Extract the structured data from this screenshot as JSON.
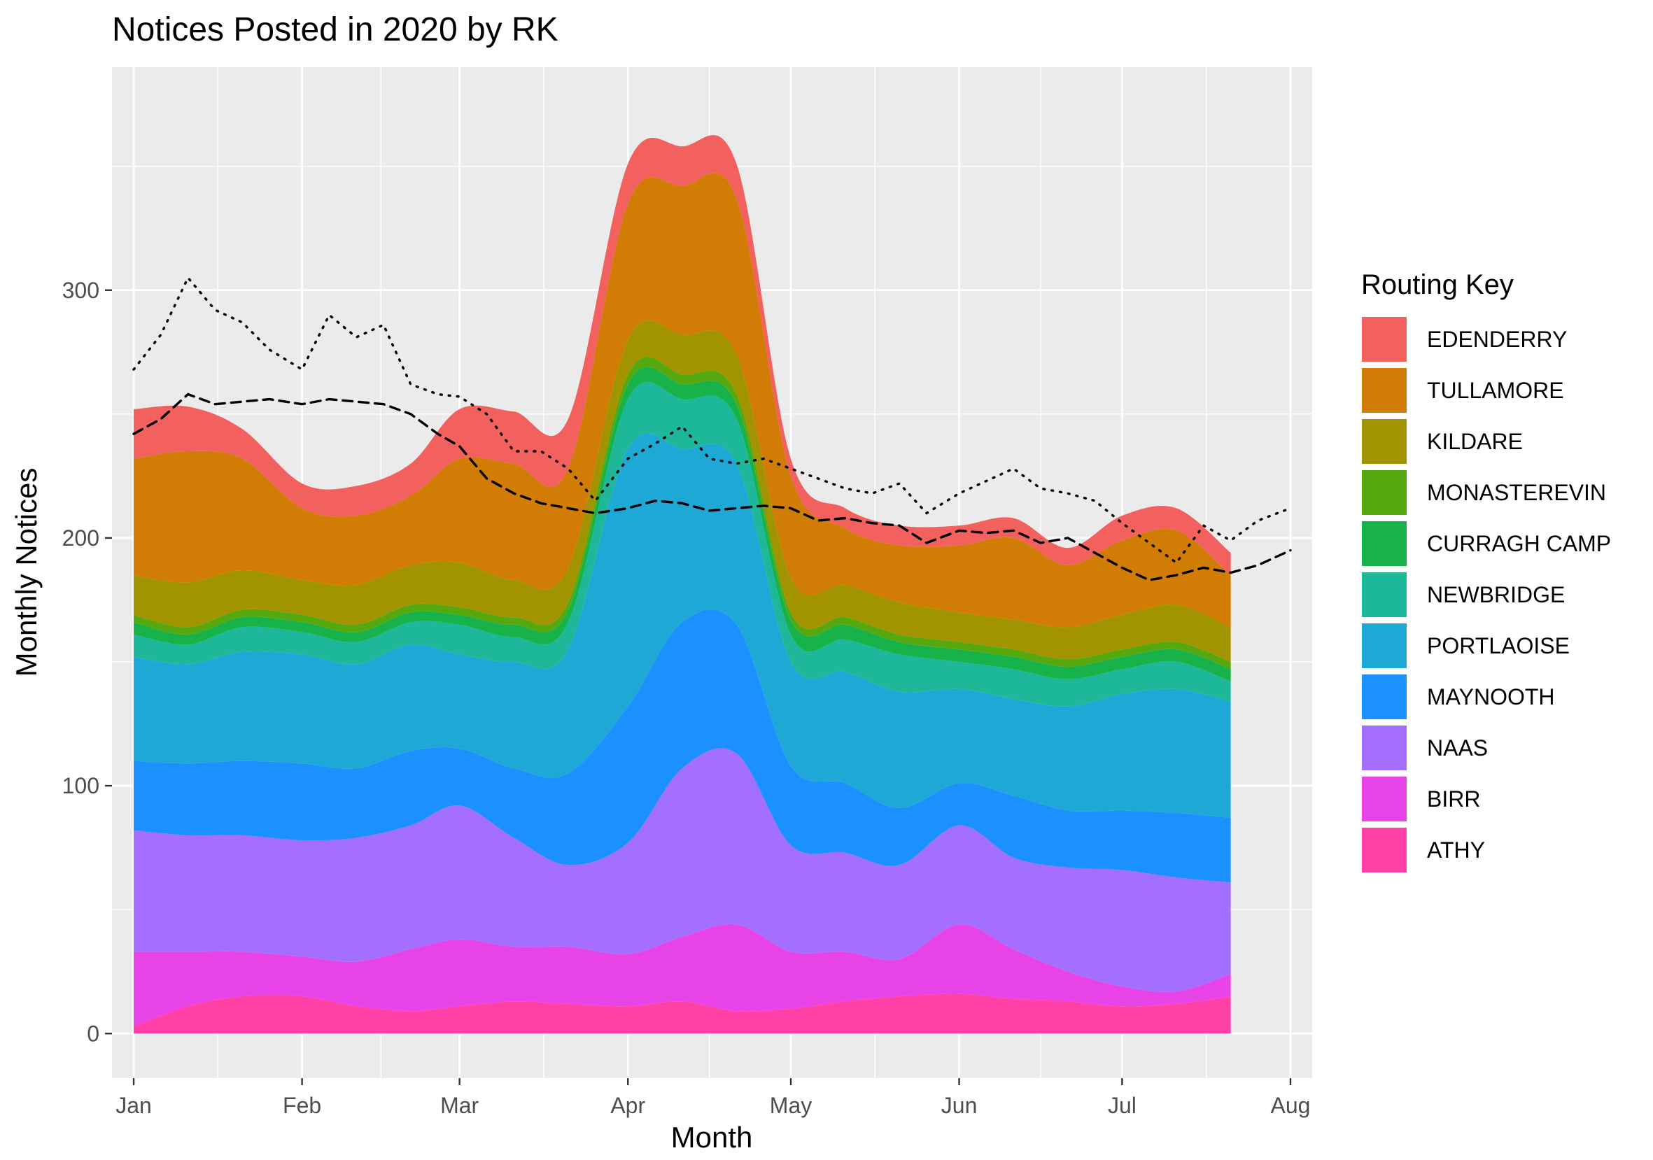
{
  "chart_data": {
    "type": "area",
    "stacked": true,
    "title": "Notices Posted in 2020 by RK",
    "xlabel": "Month",
    "ylabel": "Monthly Notices",
    "x_ticks": [
      "Jan",
      "Feb",
      "Mar",
      "Apr",
      "May",
      "Jun",
      "Jul",
      "Aug"
    ],
    "y_ticks": [
      0,
      100,
      200,
      300
    ],
    "ylim": [
      -18,
      390
    ],
    "xlim": [
      "2019-12-28",
      "2020-08-05"
    ],
    "grid": true,
    "legend": {
      "title": "Routing Key",
      "position": "right"
    },
    "x": [
      "2020-01-01",
      "2020-01-11",
      "2020-01-21",
      "2020-02-01",
      "2020-02-11",
      "2020-02-21",
      "2020-03-01",
      "2020-03-11",
      "2020-03-21",
      "2020-04-01",
      "2020-04-11",
      "2020-04-21",
      "2020-05-01",
      "2020-05-11",
      "2020-05-21",
      "2020-06-01",
      "2020-06-11",
      "2020-06-21",
      "2020-07-01",
      "2020-07-11",
      "2020-07-21"
    ],
    "series": [
      {
        "name": "ATHY",
        "color": "#FF40A6",
        "values": [
          3,
          11,
          15,
          15,
          11,
          9,
          11,
          13,
          12,
          11,
          13,
          9,
          10,
          13,
          15,
          16,
          14,
          13,
          11,
          12,
          15
        ]
      },
      {
        "name": "BIRR",
        "color": "#E743E6",
        "values": [
          30,
          22,
          18,
          16,
          18,
          25,
          27,
          22,
          23,
          21,
          26,
          35,
          23,
          20,
          15,
          28,
          20,
          12,
          8,
          5,
          9
        ]
      },
      {
        "name": "NAAS",
        "color": "#A46FFF",
        "values": [
          49,
          47,
          47,
          47,
          50,
          50,
          54,
          44,
          33,
          45,
          68,
          69,
          43,
          40,
          38,
          40,
          37,
          42,
          47,
          46,
          37
        ]
      },
      {
        "name": "MAYNOOTH",
        "color": "#1B91FF",
        "values": [
          28,
          29,
          30,
          31,
          28,
          30,
          23,
          28,
          37,
          55,
          59,
          52,
          32,
          28,
          23,
          17,
          25,
          23,
          24,
          26,
          26
        ]
      },
      {
        "name": "PORTLAOISE",
        "color": "#1DA8D6",
        "values": [
          42,
          40,
          44,
          44,
          42,
          43,
          38,
          43,
          50,
          104,
          70,
          65,
          42,
          45,
          47,
          38,
          39,
          42,
          47,
          50,
          47
        ]
      },
      {
        "name": "NEWBRIDGE",
        "color": "#1DB899",
        "values": [
          9,
          8,
          10,
          9,
          9,
          9,
          12,
          10,
          11,
          20,
          20,
          18,
          11,
          13,
          15,
          11,
          12,
          11,
          10,
          11,
          8
        ]
      },
      {
        "name": "CURRAGH CAMP",
        "color": "#17B34A",
        "values": [
          5,
          4,
          4,
          4,
          4,
          4,
          4,
          5,
          5,
          6,
          6,
          6,
          6,
          6,
          5,
          5,
          5,
          5,
          5,
          5,
          5
        ]
      },
      {
        "name": "MONASTEREVIN",
        "color": "#55A80D",
        "values": [
          3,
          3,
          3,
          3,
          3,
          3,
          3,
          3,
          3,
          4,
          4,
          4,
          3,
          3,
          3,
          3,
          3,
          3,
          3,
          3,
          3
        ]
      },
      {
        "name": "KILDARE",
        "color": "#A19400",
        "values": [
          16,
          18,
          16,
          14,
          16,
          16,
          18,
          15,
          14,
          14,
          16,
          16,
          14,
          13,
          13,
          12,
          12,
          13,
          14,
          15,
          14
        ]
      },
      {
        "name": "TULLAMORE",
        "color": "#D17C05",
        "values": [
          47,
          53,
          45,
          29,
          28,
          28,
          42,
          47,
          40,
          55,
          60,
          63,
          41,
          23,
          23,
          27,
          33,
          25,
          30,
          30,
          21
        ]
      },
      {
        "name": "EDENDERRY",
        "color": "#F2615E",
        "values": [
          20,
          18,
          12,
          10,
          12,
          13,
          20,
          21,
          20,
          16,
          16,
          14,
          7,
          8,
          8,
          8,
          8,
          7,
          10,
          9,
          9
        ]
      }
    ],
    "lines": [
      {
        "style": "dotted",
        "x": [
          "2020-01-01",
          "2020-01-06",
          "2020-01-11",
          "2020-01-16",
          "2020-01-21",
          "2020-01-26",
          "2020-02-01",
          "2020-02-06",
          "2020-02-11",
          "2020-02-16",
          "2020-02-21",
          "2020-02-26",
          "2020-03-01",
          "2020-03-06",
          "2020-03-11",
          "2020-03-16",
          "2020-03-21",
          "2020-03-26",
          "2020-04-01",
          "2020-04-06",
          "2020-04-11",
          "2020-04-16",
          "2020-04-21",
          "2020-04-26",
          "2020-05-01",
          "2020-05-06",
          "2020-05-11",
          "2020-05-16",
          "2020-05-21",
          "2020-05-26",
          "2020-06-01",
          "2020-06-06",
          "2020-06-11",
          "2020-06-16",
          "2020-06-21",
          "2020-06-26",
          "2020-07-01",
          "2020-07-06",
          "2020-07-11",
          "2020-07-16",
          "2020-07-21",
          "2020-07-26",
          "2020-08-01"
        ],
        "values": [
          268,
          282,
          305,
          292,
          287,
          276,
          268,
          290,
          281,
          286,
          262,
          258,
          257,
          250,
          235,
          235,
          228,
          215,
          232,
          238,
          245,
          232,
          230,
          232,
          228,
          224,
          220,
          218,
          222,
          210,
          218,
          223,
          228,
          220,
          218,
          215,
          206,
          198,
          190,
          205,
          199,
          207,
          212
        ]
      },
      {
        "style": "dashed",
        "x": [
          "2020-01-01",
          "2020-01-06",
          "2020-01-11",
          "2020-01-16",
          "2020-01-21",
          "2020-01-26",
          "2020-02-01",
          "2020-02-06",
          "2020-02-11",
          "2020-02-16",
          "2020-02-21",
          "2020-02-26",
          "2020-03-01",
          "2020-03-06",
          "2020-03-11",
          "2020-03-16",
          "2020-03-21",
          "2020-03-26",
          "2020-04-01",
          "2020-04-06",
          "2020-04-11",
          "2020-04-16",
          "2020-04-21",
          "2020-04-26",
          "2020-05-01",
          "2020-05-06",
          "2020-05-11",
          "2020-05-16",
          "2020-05-21",
          "2020-05-26",
          "2020-06-01",
          "2020-06-06",
          "2020-06-11",
          "2020-06-16",
          "2020-06-21",
          "2020-06-26",
          "2020-07-01",
          "2020-07-06",
          "2020-07-11",
          "2020-07-16",
          "2020-07-21",
          "2020-07-26",
          "2020-08-01"
        ],
        "values": [
          242,
          248,
          258,
          254,
          255,
          256,
          254,
          256,
          255,
          254,
          250,
          242,
          237,
          224,
          218,
          214,
          212,
          210,
          212,
          215,
          214,
          211,
          212,
          213,
          212,
          207,
          208,
          206,
          205,
          198,
          203,
          202,
          203,
          198,
          200,
          194,
          188,
          183,
          185,
          188,
          186,
          189,
          195
        ]
      }
    ]
  }
}
